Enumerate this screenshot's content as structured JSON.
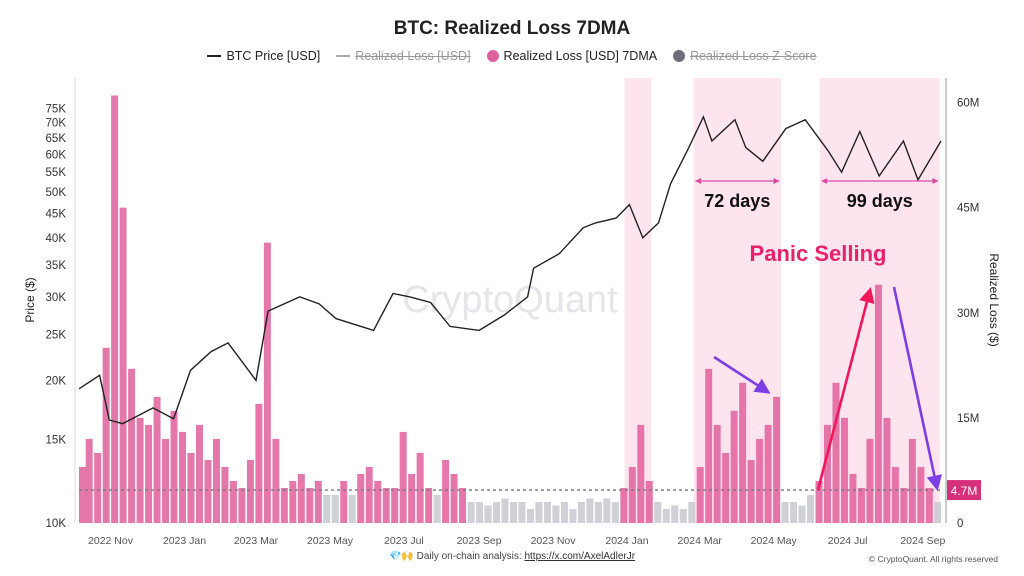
{
  "chart_data": {
    "type": "bar+line",
    "title": "BTC: Realized Loss 7DMA",
    "legend": [
      {
        "name": "BTC Price [USD]",
        "color": "#222222",
        "enabled": true,
        "marker": "line"
      },
      {
        "name": "Realized Loss [USD]",
        "color": "#aaaaaa",
        "enabled": false,
        "marker": "line"
      },
      {
        "name": "Realized Loss [USD] 7DMA",
        "color": "#e0609c",
        "enabled": true,
        "marker": "dot"
      },
      {
        "name": "Realized Loss Z-Score",
        "color": "#6e6e7a",
        "enabled": false,
        "marker": "dot"
      }
    ],
    "legend_placement": "top",
    "ylabel_left": "Price ($)",
    "ylabel_right": "Realized Loss ($)",
    "y_left_scale": "log",
    "y_left_range": [
      10000,
      80000
    ],
    "y_left_ticks": [
      "10K",
      "15K",
      "20K",
      "25K",
      "30K",
      "35K",
      "40K",
      "45K",
      "50K",
      "55K",
      "60K",
      "65K",
      "70K",
      "75K"
    ],
    "y_left_tick_values": [
      10000,
      15000,
      20000,
      25000,
      30000,
      35000,
      40000,
      45000,
      50000,
      55000,
      60000,
      65000,
      70000,
      75000
    ],
    "y_right_range": [
      0,
      63.5
    ],
    "y_right_ticks": [
      "0",
      "15M",
      "30M",
      "45M",
      "60M"
    ],
    "y_right_tick_values": [
      0,
      15,
      30,
      45,
      60
    ],
    "x_range": [
      "2022-10-15",
      "2024-09-25"
    ],
    "x_ticks": [
      "2022 Nov",
      "2023 Jan",
      "2023 Mar",
      "2023 May",
      "2023 Jul",
      "2023 Sep",
      "2023 Nov",
      "2024 Jan",
      "2024 Mar",
      "2024 May",
      "2024 Jul",
      "2024 Sep"
    ],
    "x_tick_dates": [
      "2022-11-10",
      "2023-01-10",
      "2023-03-10",
      "2023-05-10",
      "2023-07-10",
      "2023-09-10",
      "2023-11-10",
      "2024-01-10",
      "2024-03-10",
      "2024-05-10",
      "2024-07-10",
      "2024-09-10"
    ],
    "colors": {
      "price": "#222222",
      "bar_high": "#e0609c",
      "bar_low": "#c8c8d0",
      "shade": "#fde4ee",
      "current_badge": "#d6307a",
      "arrow_red": "#f0185a",
      "arrow_purple": "#7b3fe4",
      "panic_text": "#e8216b"
    },
    "threshold_line": {
      "value": 4.7
    },
    "current_value_label": "4.7M",
    "price_series": {
      "name": "BTC Price [USD]",
      "dates": [
        "2022-10-15",
        "2022-11-01",
        "2022-11-09",
        "2022-11-20",
        "2022-12-15",
        "2023-01-01",
        "2023-01-15",
        "2023-02-01",
        "2023-02-15",
        "2023-03-10",
        "2023-03-20",
        "2023-04-15",
        "2023-05-01",
        "2023-05-15",
        "2023-06-15",
        "2023-07-01",
        "2023-07-15",
        "2023-08-01",
        "2023-08-17",
        "2023-09-10",
        "2023-10-01",
        "2023-10-20",
        "2023-10-25",
        "2023-11-15",
        "2023-12-05",
        "2023-12-15",
        "2024-01-01",
        "2024-01-12",
        "2024-01-23",
        "2024-02-05",
        "2024-02-15",
        "2024-03-01",
        "2024-03-13",
        "2024-03-20",
        "2024-04-08",
        "2024-04-17",
        "2024-05-01",
        "2024-05-20",
        "2024-06-05",
        "2024-06-24",
        "2024-07-05",
        "2024-07-20",
        "2024-08-05",
        "2024-08-25",
        "2024-09-06",
        "2024-09-25"
      ],
      "values": [
        19200,
        20500,
        16500,
        16200,
        17500,
        16600,
        21000,
        23000,
        24000,
        20000,
        28000,
        30000,
        29000,
        27000,
        25500,
        30500,
        30000,
        29200,
        26000,
        25500,
        27500,
        30000,
        34500,
        37000,
        42000,
        43000,
        44000,
        47000,
        40000,
        43000,
        52000,
        62000,
        72000,
        64000,
        71000,
        62000,
        58000,
        68000,
        71000,
        61000,
        55000,
        67000,
        54000,
        64000,
        53000,
        64000
      ]
    },
    "realized_loss_7dma": {
      "name": "Realized Loss [USD] 7DMA",
      "start_date": "2022-10-17",
      "interval": "weekly",
      "unit": "M USD",
      "values": [
        8,
        12,
        10,
        25,
        61,
        45,
        22,
        15,
        14,
        18,
        12,
        16,
        13,
        10,
        14,
        9,
        12,
        8,
        6,
        5,
        9,
        17,
        40,
        12,
        5,
        6,
        7,
        5,
        6,
        4,
        4,
        6,
        4,
        7,
        8,
        6,
        5,
        5,
        13,
        7,
        10,
        5,
        4,
        9,
        7,
        5,
        3,
        3,
        2.5,
        3,
        3.5,
        3,
        3,
        2,
        3,
        3,
        2.5,
        3,
        2,
        3,
        3.5,
        3,
        3.5,
        3,
        5,
        8,
        14,
        6,
        3,
        2,
        2.5,
        2,
        3,
        8,
        22,
        14,
        10,
        16,
        20,
        9,
        12,
        14,
        18,
        3,
        3,
        2.5,
        4,
        6,
        14,
        20,
        15,
        7,
        5,
        12,
        34,
        15,
        8,
        5,
        12,
        8,
        5,
        3
      ]
    },
    "shaded_periods": [
      {
        "start": "2024-01-08",
        "end": "2024-01-30"
      },
      {
        "start": "2024-03-05",
        "end": "2024-05-16",
        "label": "72 days"
      },
      {
        "start": "2024-06-17",
        "end": "2024-09-24",
        "label": "99 days"
      }
    ],
    "annotations": {
      "panic": "Panic Selling",
      "watermark": "CryptoQuant"
    }
  },
  "footer": {
    "prefix": "💎🙌 Daily on-chain analysis: ",
    "link": "https://x.com/AxelAdlerJr",
    "copyright": "© CryptoQuant. All rights reserved"
  }
}
